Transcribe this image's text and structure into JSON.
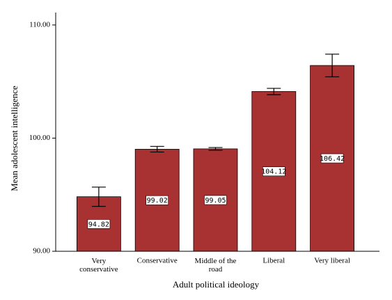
{
  "chart_data": {
    "type": "bar",
    "y_label": "Mean adolescent intelligence",
    "x_label": "Adult political ideology",
    "categories": [
      "Very conservative",
      "Conservative",
      "Middle of the road",
      "Liberal",
      "Very liberal"
    ],
    "values": [
      94.82,
      99.02,
      99.05,
      104.12,
      106.42
    ],
    "errors": [
      0.85,
      0.25,
      0.12,
      0.28,
      1.0
    ],
    "color": "#a83232",
    "ylim": [
      90,
      111.1
    ],
    "yticks": [
      {
        "value": 90,
        "label": "90.00"
      },
      {
        "value": 100,
        "label": "100.00"
      },
      {
        "value": 110,
        "label": "110.00"
      }
    ]
  }
}
